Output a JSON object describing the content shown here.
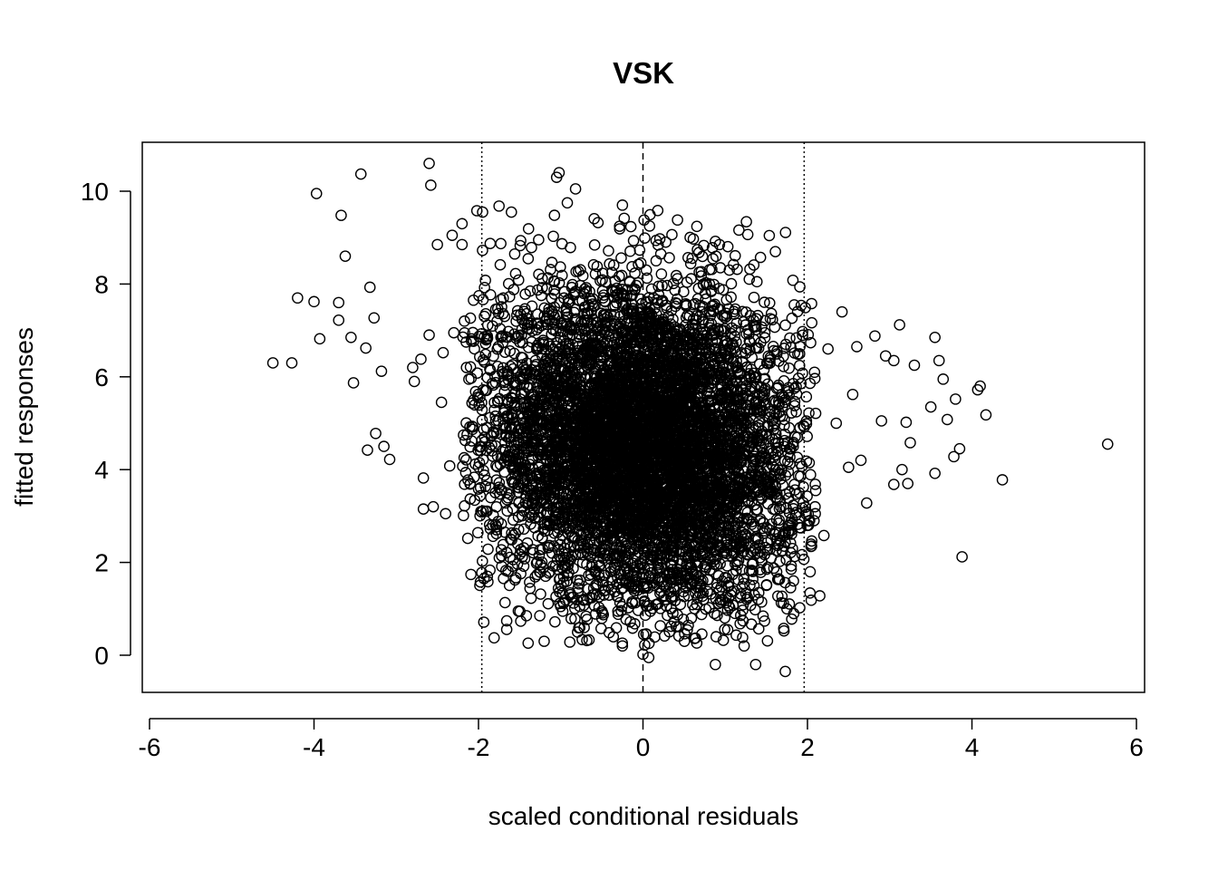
{
  "chart_data": {
    "type": "scatter",
    "title": "VSK",
    "xlabel": "scaled conditional residuals",
    "ylabel": "fitted responses",
    "xlim": [
      -6,
      6
    ],
    "ylim": [
      -0.75,
      11
    ],
    "x_ticks": [
      -6,
      -4,
      -2,
      0,
      2,
      4,
      6
    ],
    "y_ticks": [
      0,
      2,
      4,
      6,
      8,
      10
    ],
    "x_tick_labels": [
      "-6",
      "-4",
      "-2",
      "0",
      "2",
      "4",
      "6"
    ],
    "y_tick_labels": [
      "0",
      "2",
      "4",
      "6",
      "8",
      "10"
    ],
    "reference_lines": [
      {
        "x": -1.96,
        "style": "dotted"
      },
      {
        "x": 0,
        "style": "dashed"
      },
      {
        "x": 1.96,
        "style": "dotted"
      }
    ],
    "marker": "open-circle",
    "grid": false,
    "outliers": [
      {
        "x": -4.5,
        "y": 6.3
      },
      {
        "x": -4.27,
        "y": 6.3
      },
      {
        "x": -4.2,
        "y": 7.7
      },
      {
        "x": -4.0,
        "y": 7.62
      },
      {
        "x": -3.97,
        "y": 9.95
      },
      {
        "x": -3.93,
        "y": 6.82
      },
      {
        "x": -3.7,
        "y": 7.6
      },
      {
        "x": -3.67,
        "y": 9.48
      },
      {
        "x": -3.7,
        "y": 7.22
      },
      {
        "x": -3.62,
        "y": 8.6
      },
      {
        "x": -3.55,
        "y": 6.85
      },
      {
        "x": -3.52,
        "y": 5.87
      },
      {
        "x": -3.43,
        "y": 10.37
      },
      {
        "x": -3.37,
        "y": 6.62
      },
      {
        "x": -3.32,
        "y": 7.93
      },
      {
        "x": -3.27,
        "y": 7.27
      },
      {
        "x": -3.25,
        "y": 4.78
      },
      {
        "x": -3.35,
        "y": 4.42
      },
      {
        "x": -3.18,
        "y": 6.12
      },
      {
        "x": -3.15,
        "y": 4.5
      },
      {
        "x": -3.08,
        "y": 4.22
      },
      {
        "x": -2.8,
        "y": 6.2
      },
      {
        "x": -2.78,
        "y": 5.9
      },
      {
        "x": -2.7,
        "y": 6.38
      },
      {
        "x": -2.67,
        "y": 3.82
      },
      {
        "x": -2.67,
        "y": 3.15
      },
      {
        "x": -2.6,
        "y": 10.6
      },
      {
        "x": -2.58,
        "y": 10.13
      },
      {
        "x": -2.6,
        "y": 6.9
      },
      {
        "x": -2.55,
        "y": 3.2
      },
      {
        "x": -2.5,
        "y": 8.85
      },
      {
        "x": -2.45,
        "y": 5.45
      },
      {
        "x": -2.43,
        "y": 6.52
      },
      {
        "x": -2.4,
        "y": 3.05
      },
      {
        "x": -2.35,
        "y": 4.08
      },
      {
        "x": -2.32,
        "y": 9.05
      },
      {
        "x": -2.3,
        "y": 6.95
      },
      {
        "x": -2.2,
        "y": 9.3
      },
      {
        "x": -2.2,
        "y": 8.85
      },
      {
        "x": -2.15,
        "y": 6.75
      },
      {
        "x": -2.1,
        "y": 3.7
      },
      {
        "x": -2.02,
        "y": 9.58
      },
      {
        "x": -1.95,
        "y": 9.55
      },
      {
        "x": 1.9,
        "y": 3.5
      },
      {
        "x": 1.95,
        "y": 4.95
      },
      {
        "x": 2.05,
        "y": 2.35
      },
      {
        "x": 2.1,
        "y": 3.55
      },
      {
        "x": 2.15,
        "y": 1.28
      },
      {
        "x": 2.2,
        "y": 2.58
      },
      {
        "x": 2.25,
        "y": 6.6
      },
      {
        "x": 2.35,
        "y": 5.0
      },
      {
        "x": 2.42,
        "y": 7.4
      },
      {
        "x": 2.5,
        "y": 4.05
      },
      {
        "x": 2.55,
        "y": 5.62
      },
      {
        "x": 2.6,
        "y": 6.65
      },
      {
        "x": 2.65,
        "y": 4.2
      },
      {
        "x": 2.72,
        "y": 3.28
      },
      {
        "x": 2.82,
        "y": 6.88
      },
      {
        "x": 2.9,
        "y": 5.05
      },
      {
        "x": 2.95,
        "y": 6.45
      },
      {
        "x": 3.05,
        "y": 6.35
      },
      {
        "x": 3.05,
        "y": 3.68
      },
      {
        "x": 3.12,
        "y": 7.12
      },
      {
        "x": 3.15,
        "y": 4.0
      },
      {
        "x": 3.2,
        "y": 5.02
      },
      {
        "x": 3.22,
        "y": 3.7
      },
      {
        "x": 3.25,
        "y": 4.58
      },
      {
        "x": 3.3,
        "y": 6.25
      },
      {
        "x": 3.5,
        "y": 5.35
      },
      {
        "x": 3.55,
        "y": 6.85
      },
      {
        "x": 3.55,
        "y": 3.92
      },
      {
        "x": 3.6,
        "y": 6.35
      },
      {
        "x": 3.65,
        "y": 5.95
      },
      {
        "x": 3.7,
        "y": 5.08
      },
      {
        "x": 3.78,
        "y": 4.28
      },
      {
        "x": 3.8,
        "y": 5.52
      },
      {
        "x": 3.85,
        "y": 4.45
      },
      {
        "x": 3.88,
        "y": 2.12
      },
      {
        "x": 4.07,
        "y": 5.72
      },
      {
        "x": 4.1,
        "y": 5.8
      },
      {
        "x": 4.17,
        "y": 5.18
      },
      {
        "x": 4.37,
        "y": 3.78
      },
      {
        "x": 5.65,
        "y": 4.55
      },
      {
        "x": -0.25,
        "y": 0.2
      },
      {
        "x": 0.0,
        "y": 0.02
      },
      {
        "x": 0.07,
        "y": -0.05
      },
      {
        "x": 1.37,
        "y": -0.2
      },
      {
        "x": 1.73,
        "y": -0.35
      },
      {
        "x": 0.88,
        "y": -0.2
      },
      {
        "x": -1.05,
        "y": 10.3
      },
      {
        "x": -1.02,
        "y": 10.4
      },
      {
        "x": -0.82,
        "y": 10.05
      },
      {
        "x": -0.92,
        "y": 9.75
      },
      {
        "x": -0.25,
        "y": 9.7
      },
      {
        "x": 0.08,
        "y": 9.25
      },
      {
        "x": 0.42,
        "y": 9.38
      },
      {
        "x": -1.75,
        "y": 9.68
      },
      {
        "x": -1.6,
        "y": 9.55
      },
      {
        "x": 0.93,
        "y": 8.85
      },
      {
        "x": 0.88,
        "y": 8.92
      },
      {
        "x": 1.05,
        "y": 8.3
      },
      {
        "x": 1.1,
        "y": 8.42
      },
      {
        "x": 1.75,
        "y": 1.0
      },
      {
        "x": 1.83,
        "y": 1.6
      },
      {
        "x": 1.35,
        "y": 1.5
      },
      {
        "x": 1.23,
        "y": 0.2
      },
      {
        "x": 1.03,
        "y": 0.55
      },
      {
        "x": -1.0,
        "y": 1.05
      },
      {
        "x": -0.5,
        "y": 0.95
      },
      {
        "x": -0.85,
        "y": 1.25
      }
    ],
    "cluster": {
      "n": 7000,
      "x_mean": 0.0,
      "x_sd": 0.95,
      "y_mean": 4.5,
      "y_sd": 1.75,
      "correlation": -0.1,
      "y_range": [
        0.2,
        9.6
      ]
    }
  }
}
